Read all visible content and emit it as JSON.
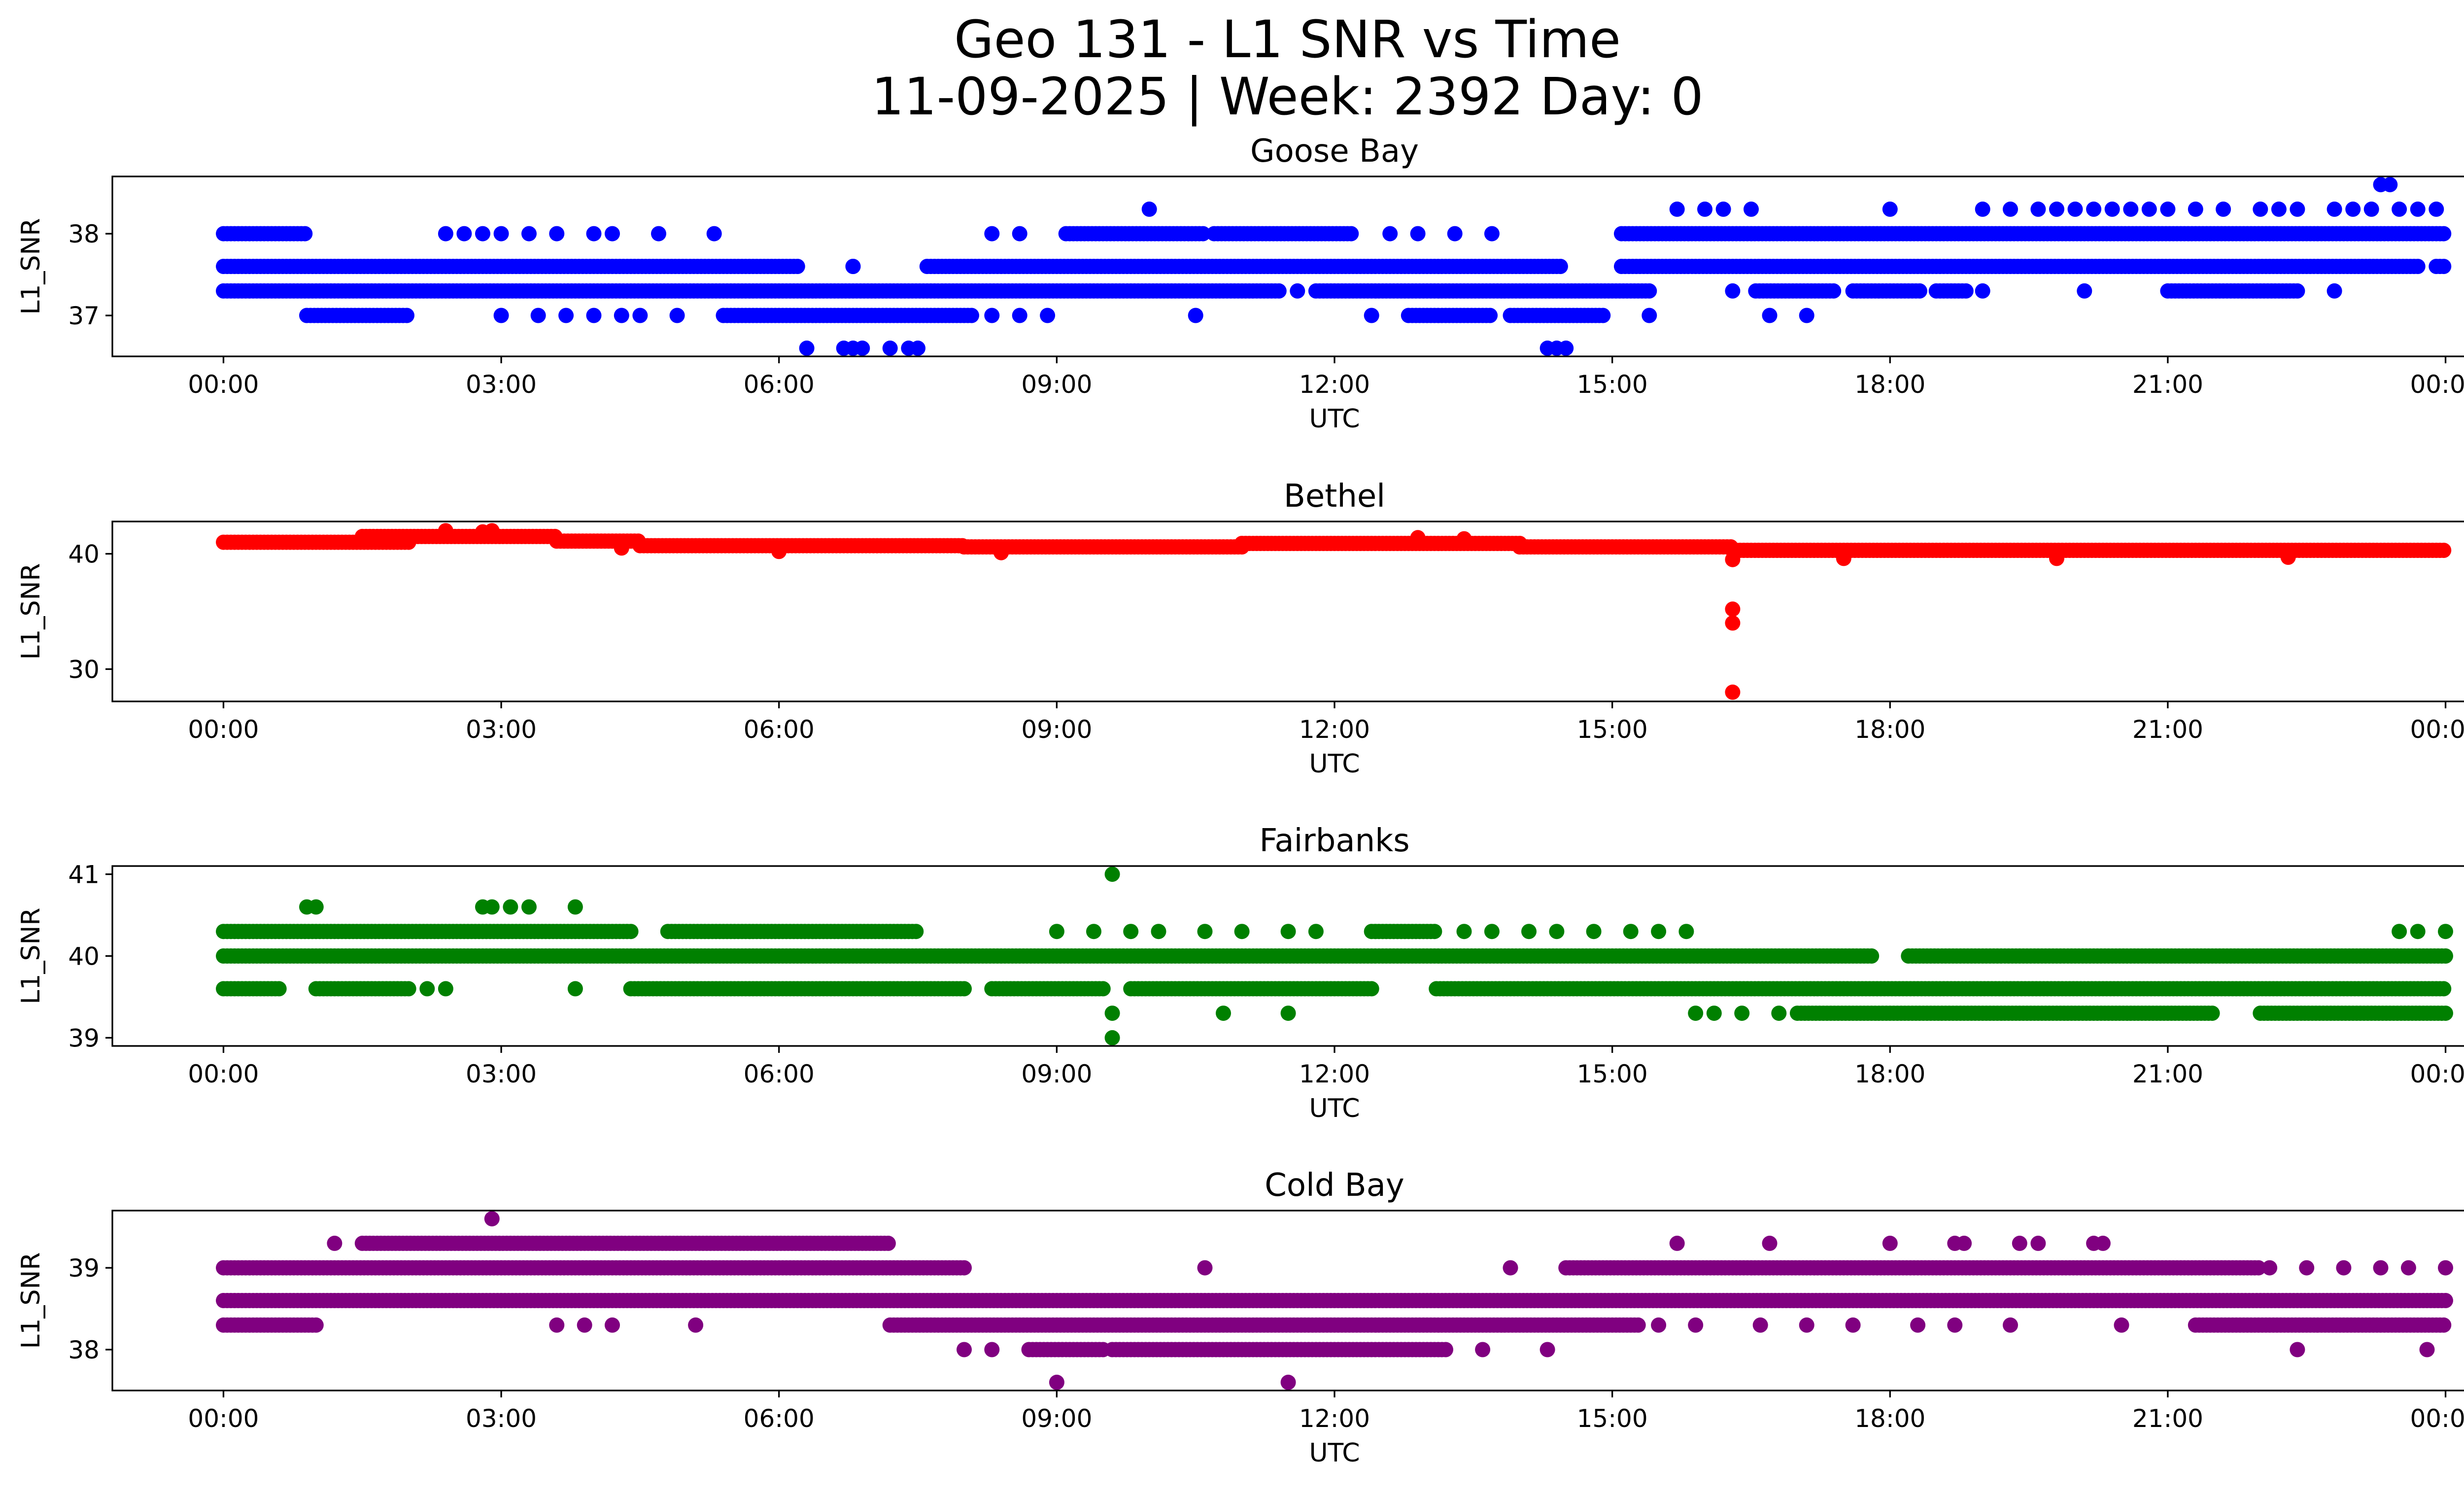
{
  "figure": {
    "title_line1": "Geo 131 - L1 SNR vs Time",
    "title_line2": "11-09-2025 | Week: 2392 Day: 0"
  },
  "chart_data": [
    {
      "type": "scatter",
      "title": "Goose Bay",
      "xlabel": "UTC",
      "ylabel": "L1_SNR",
      "color": "#0000ff",
      "xlim": [
        -1.2,
        25.2
      ],
      "ylim": [
        36.5,
        38.7
      ],
      "xticks": [
        0,
        3,
        6,
        9,
        12,
        15,
        18,
        21,
        24
      ],
      "xticklabels": [
        "00:00",
        "03:00",
        "06:00",
        "09:00",
        "12:00",
        "15:00",
        "18:00",
        "21:00",
        "00:00"
      ],
      "yticks": [
        37,
        38
      ],
      "yticklabels": [
        "37",
        "38"
      ],
      "bands": [
        {
          "y": 37.6,
          "segments": [
            [
              0.0,
              6.2
            ],
            [
              7.6,
              14.45
            ],
            [
              15.1,
              23.7
            ],
            [
              23.9,
              24.0
            ]
          ]
        },
        {
          "y": 37.3,
          "segments": [
            [
              0.0,
              11.4
            ],
            [
              11.8,
              15.4
            ],
            [
              16.55,
              17.4
            ],
            [
              17.6,
              18.35
            ],
            [
              18.5,
              18.85
            ],
            [
              21.0,
              22.4
            ]
          ]
        },
        {
          "y": 38.0,
          "segments": [
            [
              0.0,
              0.9
            ],
            [
              9.1,
              10.6
            ],
            [
              10.7,
              12.2
            ],
            [
              15.1,
              24.0
            ]
          ]
        },
        {
          "y": 37.0,
          "segments": [
            [
              0.9,
              2.0
            ],
            [
              5.4,
              8.1
            ],
            [
              12.8,
              13.7
            ],
            [
              13.9,
              14.9
            ]
          ]
        }
      ],
      "points": [
        {
          "x": 2.4,
          "y": 38.0
        },
        {
          "x": 2.6,
          "y": 38.0
        },
        {
          "x": 2.8,
          "y": 38.0
        },
        {
          "x": 3.0,
          "y": 38.0
        },
        {
          "x": 3.3,
          "y": 38.0
        },
        {
          "x": 3.6,
          "y": 38.0
        },
        {
          "x": 4.0,
          "y": 38.0
        },
        {
          "x": 4.2,
          "y": 38.0
        },
        {
          "x": 4.7,
          "y": 38.0
        },
        {
          "x": 5.3,
          "y": 38.0
        },
        {
          "x": 8.3,
          "y": 38.0
        },
        {
          "x": 8.6,
          "y": 38.0
        },
        {
          "x": 12.6,
          "y": 38.0
        },
        {
          "x": 12.9,
          "y": 38.0
        },
        {
          "x": 13.3,
          "y": 38.0
        },
        {
          "x": 13.7,
          "y": 38.0
        },
        {
          "x": 3.0,
          "y": 37.0
        },
        {
          "x": 3.4,
          "y": 37.0
        },
        {
          "x": 3.7,
          "y": 37.0
        },
        {
          "x": 4.0,
          "y": 37.0
        },
        {
          "x": 4.3,
          "y": 37.0
        },
        {
          "x": 4.5,
          "y": 37.0
        },
        {
          "x": 4.9,
          "y": 37.0
        },
        {
          "x": 8.3,
          "y": 37.0
        },
        {
          "x": 8.6,
          "y": 37.0
        },
        {
          "x": 8.9,
          "y": 37.0
        },
        {
          "x": 10.5,
          "y": 37.0
        },
        {
          "x": 12.4,
          "y": 37.0
        },
        {
          "x": 15.4,
          "y": 37.0
        },
        {
          "x": 16.7,
          "y": 37.0
        },
        {
          "x": 17.1,
          "y": 37.0
        },
        {
          "x": 6.8,
          "y": 37.6
        },
        {
          "x": 6.8,
          "y": 37.6
        },
        {
          "x": 11.6,
          "y": 37.3
        },
        {
          "x": 16.3,
          "y": 37.3
        },
        {
          "x": 19.0,
          "y": 37.3
        },
        {
          "x": 20.1,
          "y": 37.3
        },
        {
          "x": 22.8,
          "y": 37.3
        },
        {
          "x": 6.3,
          "y": 36.6
        },
        {
          "x": 6.7,
          "y": 36.6
        },
        {
          "x": 6.8,
          "y": 36.6
        },
        {
          "x": 6.9,
          "y": 36.6
        },
        {
          "x": 7.2,
          "y": 36.6
        },
        {
          "x": 7.4,
          "y": 36.6
        },
        {
          "x": 7.5,
          "y": 36.6
        },
        {
          "x": 14.3,
          "y": 36.6
        },
        {
          "x": 14.4,
          "y": 36.6
        },
        {
          "x": 14.5,
          "y": 36.6
        },
        {
          "x": 10.0,
          "y": 38.3
        },
        {
          "x": 15.7,
          "y": 38.3
        },
        {
          "x": 16.0,
          "y": 38.3
        },
        {
          "x": 16.2,
          "y": 38.3
        },
        {
          "x": 16.5,
          "y": 38.3
        },
        {
          "x": 18.0,
          "y": 38.3
        },
        {
          "x": 19.0,
          "y": 38.3
        },
        {
          "x": 19.3,
          "y": 38.3
        },
        {
          "x": 19.6,
          "y": 38.3
        },
        {
          "x": 19.8,
          "y": 38.3
        },
        {
          "x": 20.0,
          "y": 38.3
        },
        {
          "x": 20.2,
          "y": 38.3
        },
        {
          "x": 20.4,
          "y": 38.3
        },
        {
          "x": 20.6,
          "y": 38.3
        },
        {
          "x": 20.8,
          "y": 38.3
        },
        {
          "x": 21.0,
          "y": 38.3
        },
        {
          "x": 21.3,
          "y": 38.3
        },
        {
          "x": 21.6,
          "y": 38.3
        },
        {
          "x": 22.0,
          "y": 38.3
        },
        {
          "x": 22.2,
          "y": 38.3
        },
        {
          "x": 22.4,
          "y": 38.3
        },
        {
          "x": 22.8,
          "y": 38.3
        },
        {
          "x": 23.0,
          "y": 38.3
        },
        {
          "x": 23.2,
          "y": 38.3
        },
        {
          "x": 23.5,
          "y": 38.3
        },
        {
          "x": 23.7,
          "y": 38.3
        },
        {
          "x": 23.9,
          "y": 38.3
        },
        {
          "x": 23.3,
          "y": 38.6
        },
        {
          "x": 23.4,
          "y": 38.6
        }
      ]
    },
    {
      "type": "scatter",
      "title": "Bethel",
      "xlabel": "UTC",
      "ylabel": "L1_SNR",
      "color": "#ff0000",
      "xlim": [
        -1.2,
        25.2
      ],
      "ylim": [
        27.2,
        42.8
      ],
      "xticks": [
        0,
        3,
        6,
        9,
        12,
        15,
        18,
        21,
        24
      ],
      "xticklabels": [
        "00:00",
        "03:00",
        "06:00",
        "09:00",
        "12:00",
        "15:00",
        "18:00",
        "21:00",
        "00:00"
      ],
      "yticks": [
        30,
        40
      ],
      "yticklabels": [
        "30",
        "40"
      ],
      "bands": [
        {
          "y": 41.0,
          "segments": [
            [
              0.0,
              2.0
            ]
          ]
        },
        {
          "y": 41.5,
          "segments": [
            [
              1.5,
              3.6
            ]
          ]
        },
        {
          "y": 41.1,
          "segments": [
            [
              3.6,
              4.5
            ]
          ]
        },
        {
          "y": 40.7,
          "segments": [
            [
              4.5,
              8.0
            ]
          ]
        },
        {
          "y": 40.6,
          "segments": [
            [
              8.0,
              11.0
            ]
          ]
        },
        {
          "y": 40.9,
          "segments": [
            [
              11.0,
              14.0
            ]
          ]
        },
        {
          "y": 40.6,
          "segments": [
            [
              14.0,
              16.3
            ]
          ]
        },
        {
          "y": 40.3,
          "segments": [
            [
              16.3,
              24.0
            ]
          ]
        }
      ],
      "points": [
        {
          "x": 16.3,
          "y": 35.2
        },
        {
          "x": 16.3,
          "y": 34.0
        },
        {
          "x": 16.3,
          "y": 28.0
        },
        {
          "x": 16.3,
          "y": 39.5
        },
        {
          "x": 2.4,
          "y": 42.0
        },
        {
          "x": 2.8,
          "y": 41.9
        },
        {
          "x": 2.9,
          "y": 42.0
        },
        {
          "x": 12.9,
          "y": 41.4
        },
        {
          "x": 13.4,
          "y": 41.3
        },
        {
          "x": 17.5,
          "y": 39.6
        },
        {
          "x": 19.8,
          "y": 39.6
        },
        {
          "x": 22.3,
          "y": 39.7
        },
        {
          "x": 6.0,
          "y": 40.2
        },
        {
          "x": 8.4,
          "y": 40.1
        },
        {
          "x": 4.3,
          "y": 40.5
        }
      ]
    },
    {
      "type": "scatter",
      "title": "Fairbanks",
      "xlabel": "UTC",
      "ylabel": "L1_SNR",
      "color": "#008000",
      "xlim": [
        -1.2,
        25.2
      ],
      "ylim": [
        38.9,
        41.1
      ],
      "xticks": [
        0,
        3,
        6,
        9,
        12,
        15,
        18,
        21,
        24
      ],
      "xticklabels": [
        "00:00",
        "03:00",
        "06:00",
        "09:00",
        "12:00",
        "15:00",
        "18:00",
        "21:00",
        "00:00"
      ],
      "yticks": [
        39,
        40,
        41
      ],
      "yticklabels": [
        "39",
        "40",
        "41"
      ],
      "bands": [
        {
          "y": 40.0,
          "segments": [
            [
              0.0,
              17.8
            ],
            [
              18.2,
              24.0
            ]
          ]
        },
        {
          "y": 40.3,
          "segments": [
            [
              0.0,
              4.4
            ],
            [
              4.8,
              7.5
            ],
            [
              12.4,
              13.1
            ]
          ]
        },
        {
          "y": 39.6,
          "segments": [
            [
              0.0,
              0.6
            ],
            [
              1.0,
              2.0
            ],
            [
              4.4,
              8.0
            ],
            [
              8.3,
              9.5
            ],
            [
              9.8,
              12.4
            ],
            [
              13.1,
              24.0
            ]
          ]
        },
        {
          "y": 39.3,
          "segments": [
            [
              17.0,
              21.5
            ],
            [
              22.0,
              24.0
            ]
          ]
        }
      ],
      "points": [
        {
          "x": 0.9,
          "y": 40.6
        },
        {
          "x": 1.0,
          "y": 40.6
        },
        {
          "x": 2.8,
          "y": 40.6
        },
        {
          "x": 2.9,
          "y": 40.6
        },
        {
          "x": 3.1,
          "y": 40.6
        },
        {
          "x": 3.3,
          "y": 40.6
        },
        {
          "x": 3.8,
          "y": 40.6
        },
        {
          "x": 9.6,
          "y": 41.0
        },
        {
          "x": 9.6,
          "y": 39.0
        },
        {
          "x": 9.6,
          "y": 39.3
        },
        {
          "x": 10.8,
          "y": 39.3
        },
        {
          "x": 11.5,
          "y": 39.3
        },
        {
          "x": 3.8,
          "y": 39.6
        },
        {
          "x": 2.2,
          "y": 39.6
        },
        {
          "x": 2.4,
          "y": 39.6
        },
        {
          "x": 9.0,
          "y": 40.3
        },
        {
          "x": 9.4,
          "y": 40.3
        },
        {
          "x": 9.8,
          "y": 40.3
        },
        {
          "x": 10.1,
          "y": 40.3
        },
        {
          "x": 10.6,
          "y": 40.3
        },
        {
          "x": 11.0,
          "y": 40.3
        },
        {
          "x": 11.5,
          "y": 40.3
        },
        {
          "x": 11.8,
          "y": 40.3
        },
        {
          "x": 13.4,
          "y": 40.3
        },
        {
          "x": 13.7,
          "y": 40.3
        },
        {
          "x": 14.1,
          "y": 40.3
        },
        {
          "x": 14.4,
          "y": 40.3
        },
        {
          "x": 14.8,
          "y": 40.3
        },
        {
          "x": 15.2,
          "y": 40.3
        },
        {
          "x": 15.5,
          "y": 40.3
        },
        {
          "x": 15.8,
          "y": 40.3
        },
        {
          "x": 23.5,
          "y": 40.3
        },
        {
          "x": 23.7,
          "y": 40.3
        },
        {
          "x": 24.0,
          "y": 40.3
        },
        {
          "x": 15.9,
          "y": 39.3
        },
        {
          "x": 16.1,
          "y": 39.3
        },
        {
          "x": 16.4,
          "y": 39.3
        },
        {
          "x": 16.8,
          "y": 39.3
        }
      ]
    },
    {
      "type": "scatter",
      "title": "Cold Bay",
      "xlabel": "UTC",
      "ylabel": "L1_SNR",
      "color": "#800080",
      "xlim": [
        -1.2,
        25.2
      ],
      "ylim": [
        37.5,
        39.7
      ],
      "xticks": [
        0,
        3,
        6,
        9,
        12,
        15,
        18,
        21,
        24
      ],
      "xticklabels": [
        "00:00",
        "03:00",
        "06:00",
        "09:00",
        "12:00",
        "15:00",
        "18:00",
        "21:00",
        "00:00"
      ],
      "yticks": [
        38,
        39
      ],
      "yticklabels": [
        "38",
        "39"
      ],
      "bands": [
        {
          "y": 38.6,
          "segments": [
            [
              0.0,
              24.0
            ]
          ]
        },
        {
          "y": 39.0,
          "segments": [
            [
              0.0,
              8.0
            ],
            [
              14.5,
              22.0
            ]
          ]
        },
        {
          "y": 38.3,
          "segments": [
            [
              0.0,
              1.0
            ],
            [
              7.2,
              15.3
            ],
            [
              21.3,
              24.0
            ]
          ]
        },
        {
          "y": 38.0,
          "segments": [
            [
              8.7,
              9.5
            ],
            [
              9.6,
              13.2
            ]
          ]
        },
        {
          "y": 39.3,
          "segments": [
            [
              1.5,
              7.2
            ]
          ]
        }
      ],
      "points": [
        {
          "x": 1.2,
          "y": 39.3
        },
        {
          "x": 2.9,
          "y": 39.6
        },
        {
          "x": 10.6,
          "y": 39.0
        },
        {
          "x": 11.5,
          "y": 37.6
        },
        {
          "x": 9.0,
          "y": 37.6
        },
        {
          "x": 8.0,
          "y": 38.0
        },
        {
          "x": 8.3,
          "y": 38.0
        },
        {
          "x": 13.6,
          "y": 38.0
        },
        {
          "x": 14.3,
          "y": 38.0
        },
        {
          "x": 22.4,
          "y": 38.0
        },
        {
          "x": 23.8,
          "y": 38.0
        },
        {
          "x": 3.6,
          "y": 38.3
        },
        {
          "x": 3.9,
          "y": 38.3
        },
        {
          "x": 4.2,
          "y": 38.3
        },
        {
          "x": 5.1,
          "y": 38.3
        },
        {
          "x": 15.5,
          "y": 38.3
        },
        {
          "x": 15.9,
          "y": 38.3
        },
        {
          "x": 16.6,
          "y": 38.3
        },
        {
          "x": 17.1,
          "y": 38.3
        },
        {
          "x": 17.6,
          "y": 38.3
        },
        {
          "x": 18.3,
          "y": 38.3
        },
        {
          "x": 18.7,
          "y": 38.3
        },
        {
          "x": 19.3,
          "y": 38.3
        },
        {
          "x": 20.5,
          "y": 38.3
        },
        {
          "x": 13.9,
          "y": 39.0
        },
        {
          "x": 15.7,
          "y": 39.3
        },
        {
          "x": 16.7,
          "y": 39.3
        },
        {
          "x": 18.0,
          "y": 39.3
        },
        {
          "x": 18.7,
          "y": 39.3
        },
        {
          "x": 18.8,
          "y": 39.3
        },
        {
          "x": 19.4,
          "y": 39.3
        },
        {
          "x": 19.6,
          "y": 39.3
        },
        {
          "x": 20.2,
          "y": 39.3
        },
        {
          "x": 20.3,
          "y": 39.3
        },
        {
          "x": 22.1,
          "y": 39.0
        },
        {
          "x": 22.5,
          "y": 39.0
        },
        {
          "x": 22.9,
          "y": 39.0
        },
        {
          "x": 23.3,
          "y": 39.0
        },
        {
          "x": 23.6,
          "y": 39.0
        },
        {
          "x": 24.0,
          "y": 39.0
        }
      ]
    }
  ]
}
